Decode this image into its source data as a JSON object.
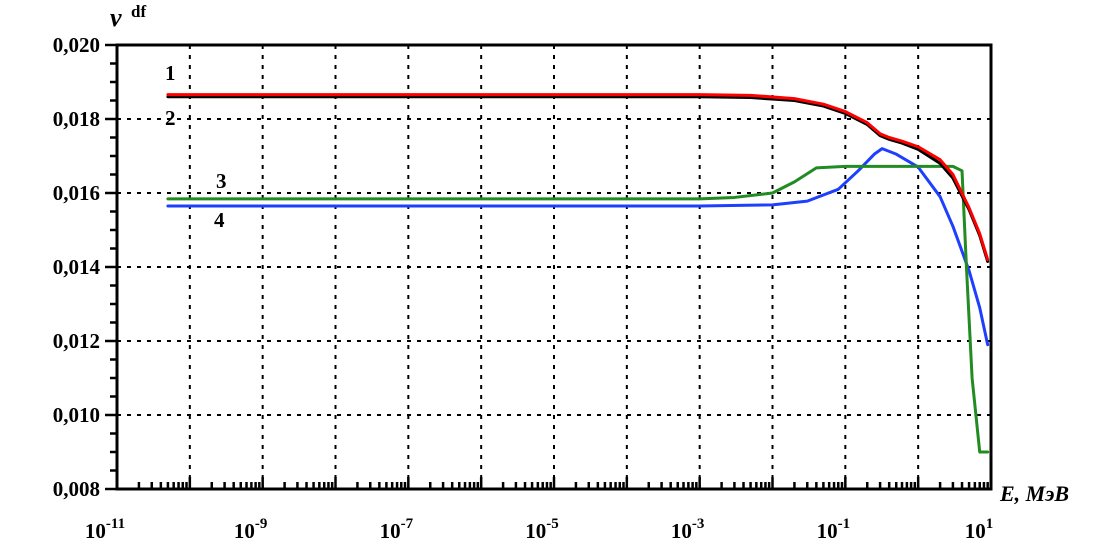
{
  "chart_data": {
    "type": "line",
    "title": "",
    "ylabel": "ν df",
    "ylabel_main": "ν",
    "ylabel_sup": "df",
    "xlabel": "E, МэВ",
    "x_scale": "log",
    "xlim": [
      1e-11,
      10
    ],
    "ylim": [
      0.008,
      0.02
    ],
    "grid": true,
    "x_ticks": [
      {
        "value": 1e-11,
        "base": "10",
        "exp": "-11"
      },
      {
        "value": 1e-09,
        "base": "10",
        "exp": "-9"
      },
      {
        "value": 1e-07,
        "base": "10",
        "exp": "-7"
      },
      {
        "value": 1e-05,
        "base": "10",
        "exp": "-5"
      },
      {
        "value": 0.001,
        "base": "10",
        "exp": "-3"
      },
      {
        "value": 0.1,
        "base": "10",
        "exp": "-1"
      },
      {
        "value": 10,
        "base": "10",
        "exp": "1"
      }
    ],
    "y_ticks": [
      {
        "value": 0.008,
        "label": "0,008"
      },
      {
        "value": 0.01,
        "label": "0,010"
      },
      {
        "value": 0.012,
        "label": "0,012"
      },
      {
        "value": 0.014,
        "label": "0,014"
      },
      {
        "value": 0.016,
        "label": "0,016"
      },
      {
        "value": 0.018,
        "label": "0,018"
      },
      {
        "value": 0.02,
        "label": "0,020"
      }
    ],
    "series": [
      {
        "label": "1",
        "color": "#ff0000",
        "points": [
          [
            5e-11,
            0.01866
          ],
          [
            0.0001,
            0.01866
          ],
          [
            0.001,
            0.01866
          ],
          [
            0.005,
            0.01864
          ],
          [
            0.02,
            0.01855
          ],
          [
            0.05,
            0.0184
          ],
          [
            0.1,
            0.0182
          ],
          [
            0.2,
            0.0179
          ],
          [
            0.3,
            0.0176
          ],
          [
            0.4,
            0.0175
          ],
          [
            0.6,
            0.0174
          ],
          [
            1,
            0.01725
          ],
          [
            2,
            0.0169
          ],
          [
            3,
            0.0165
          ],
          [
            5,
            0.0156
          ],
          [
            7,
            0.0149
          ],
          [
            9,
            0.0142
          ]
        ]
      },
      {
        "label": "2",
        "color": "#000000",
        "points": [
          [
            5e-11,
            0.0186
          ],
          [
            0.0001,
            0.0186
          ],
          [
            0.001,
            0.0186
          ],
          [
            0.005,
            0.01858
          ],
          [
            0.02,
            0.0185
          ],
          [
            0.05,
            0.01835
          ],
          [
            0.1,
            0.01815
          ],
          [
            0.2,
            0.01785
          ],
          [
            0.3,
            0.01755
          ],
          [
            0.4,
            0.01745
          ],
          [
            0.6,
            0.01735
          ],
          [
            1,
            0.01718
          ],
          [
            2,
            0.0168
          ],
          [
            3,
            0.0164
          ],
          [
            5,
            0.01555
          ],
          [
            7,
            0.01485
          ],
          [
            9,
            0.01415
          ]
        ]
      },
      {
        "label": "3",
        "color": "#228b22",
        "points": [
          [
            5e-11,
            0.01584
          ],
          [
            0.001,
            0.01584
          ],
          [
            0.003,
            0.01588
          ],
          [
            0.01,
            0.016
          ],
          [
            0.02,
            0.0163
          ],
          [
            0.04,
            0.01668
          ],
          [
            0.1,
            0.01672
          ],
          [
            1,
            0.01672
          ],
          [
            3,
            0.01672
          ],
          [
            4,
            0.0166
          ],
          [
            4.6,
            0.014
          ],
          [
            5.5,
            0.011
          ],
          [
            7,
            0.009
          ],
          [
            9,
            0.009
          ]
        ]
      },
      {
        "label": "4",
        "color": "#1f3fff",
        "points": [
          [
            5e-11,
            0.01565
          ],
          [
            0.001,
            0.01565
          ],
          [
            0.01,
            0.01568
          ],
          [
            0.03,
            0.01578
          ],
          [
            0.08,
            0.0161
          ],
          [
            0.15,
            0.0166
          ],
          [
            0.25,
            0.01705
          ],
          [
            0.32,
            0.0172
          ],
          [
            0.5,
            0.01705
          ],
          [
            1,
            0.0167
          ],
          [
            2,
            0.0159
          ],
          [
            3,
            0.0151
          ],
          [
            5,
            0.0139
          ],
          [
            7,
            0.0129
          ],
          [
            9,
            0.0119
          ]
        ]
      }
    ]
  }
}
